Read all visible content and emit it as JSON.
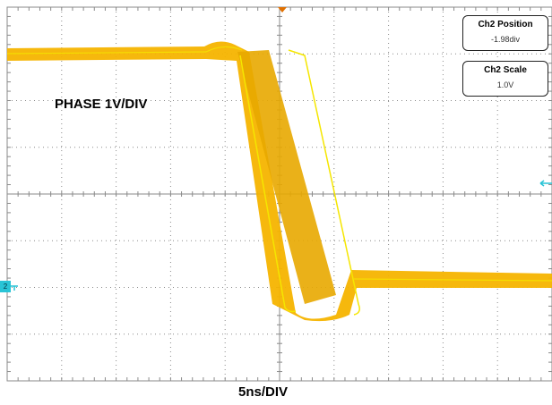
{
  "channel_label": "PHASE 1V/DIV",
  "time_label": "5ns/DIV",
  "info": {
    "position_title": "Ch2 Position",
    "position_value": "-1.98div",
    "scale_title": "Ch2 Scale",
    "scale_value": "1.0V"
  },
  "ch2_marker": "2",
  "colors": {
    "trace": "#f5b400",
    "trace_edge": "#f5e600",
    "grid": "#8a8a8a",
    "marker": "#29c4d6"
  }
}
